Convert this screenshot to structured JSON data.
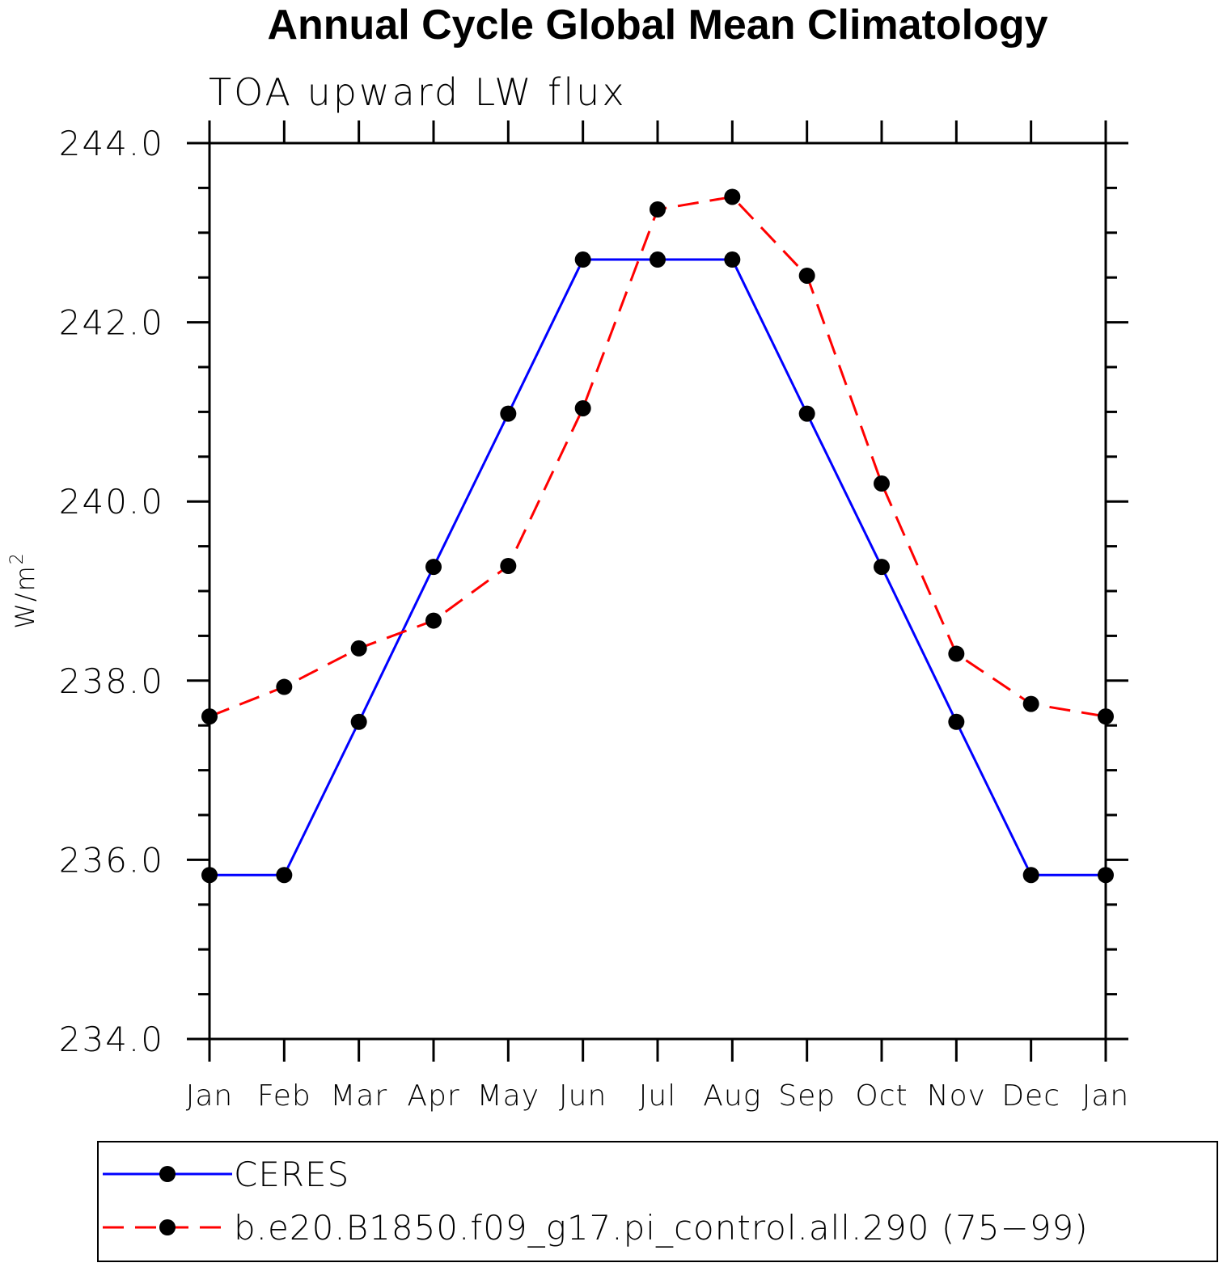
{
  "chart_data": {
    "type": "line",
    "title": "Annual Cycle Global Mean Climatology",
    "subtitle": "TOA upward LW flux",
    "xlabel": "",
    "ylabel": "W/m",
    "ylabel_superscript": "2",
    "categories": [
      "Jan",
      "Feb",
      "Mar",
      "Apr",
      "May",
      "Jun",
      "Jul",
      "Aug",
      "Sep",
      "Oct",
      "Nov",
      "Dec",
      "Jan"
    ],
    "ylim": [
      234.0,
      244.0
    ],
    "yticks": [
      234.0,
      236.0,
      238.0,
      240.0,
      242.0,
      244.0
    ],
    "ytick_labels": [
      "234.0",
      "236.0",
      "238.0",
      "240.0",
      "242.0",
      "244.0"
    ],
    "grid": false,
    "legend_position": "bottom",
    "series": [
      {
        "name": "CERES",
        "color": "#0000ff",
        "dash": "solid",
        "marker": "circle",
        "values": [
          235.83,
          235.83,
          237.54,
          239.27,
          240.98,
          242.7,
          242.7,
          242.7,
          240.98,
          239.27,
          237.54,
          235.83,
          235.83
        ]
      },
      {
        "name": "b.e20.B1850.f09_g17.pi_control.all.290 (75−99)",
        "color": "#ff0000",
        "dash": "dashed",
        "marker": "circle",
        "values": [
          237.6,
          237.93,
          238.36,
          238.67,
          239.28,
          241.04,
          243.26,
          243.4,
          242.52,
          240.2,
          238.3,
          237.74,
          237.6
        ]
      }
    ]
  }
}
